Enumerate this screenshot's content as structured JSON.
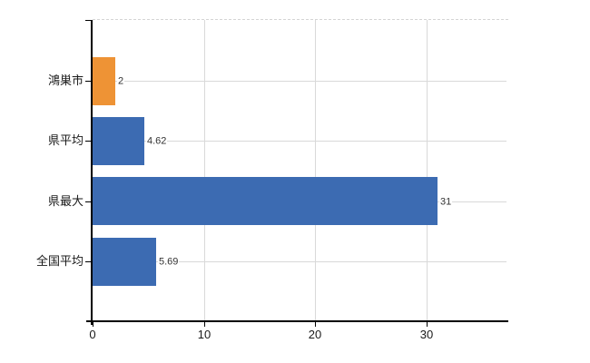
{
  "chart_data": {
    "type": "bar",
    "orientation": "horizontal",
    "title": "",
    "xlabel": "",
    "ylabel": "",
    "categories": [
      "鴻巣市",
      "県平均",
      "県最大",
      "全国平均"
    ],
    "values": [
      2,
      4.62,
      31,
      5.69
    ],
    "value_labels": [
      "2",
      "4.62",
      "31",
      "5.69"
    ],
    "bar_colors": [
      "#EE9335",
      "#3C6BB2",
      "#3C6BB2",
      "#3C6BB2"
    ],
    "x_tick_labels": [
      "0",
      "10",
      "20",
      "30"
    ],
    "x_tick_values": [
      0,
      10,
      20,
      30
    ],
    "xlim": [
      0,
      37.5
    ],
    "grid": true,
    "legend_position": "none",
    "colors": {
      "grid": "#d9d9d9",
      "axis": "#000000",
      "text": "#333333",
      "background": "#ffffff",
      "bar_blue": "#3C6BB2",
      "bar_orange": "#EE9335"
    }
  }
}
